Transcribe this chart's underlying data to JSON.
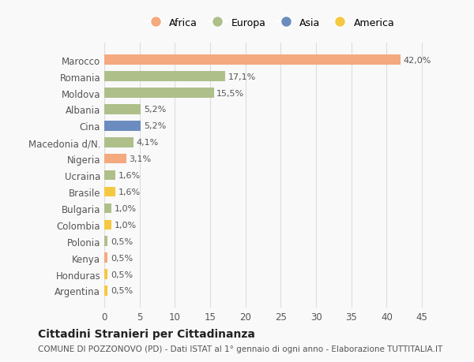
{
  "categories": [
    "Marocco",
    "Romania",
    "Moldova",
    "Albania",
    "Cina",
    "Macedonia d/N.",
    "Nigeria",
    "Ucraina",
    "Brasile",
    "Bulgaria",
    "Colombia",
    "Polonia",
    "Kenya",
    "Honduras",
    "Argentina"
  ],
  "values": [
    42.0,
    17.1,
    15.5,
    5.2,
    5.2,
    4.1,
    3.1,
    1.6,
    1.6,
    1.0,
    1.0,
    0.5,
    0.5,
    0.5,
    0.5
  ],
  "labels": [
    "42,0%",
    "17,1%",
    "15,5%",
    "5,2%",
    "5,2%",
    "4,1%",
    "3,1%",
    "1,6%",
    "1,6%",
    "1,0%",
    "1,0%",
    "0,5%",
    "0,5%",
    "0,5%",
    "0,5%"
  ],
  "continents": [
    "Africa",
    "Europa",
    "Europa",
    "Europa",
    "Asia",
    "Europa",
    "Africa",
    "Europa",
    "America",
    "Europa",
    "America",
    "Europa",
    "Africa",
    "America",
    "America"
  ],
  "continent_colors": {
    "Africa": "#F4A97F",
    "Europa": "#AFBF8A",
    "Asia": "#6B8CBE",
    "America": "#F5C842"
  },
  "legend_order": [
    "Africa",
    "Europa",
    "Asia",
    "America"
  ],
  "xlim": [
    0,
    47
  ],
  "xticks": [
    0,
    5,
    10,
    15,
    20,
    25,
    30,
    35,
    40,
    45
  ],
  "title": "Cittadini Stranieri per Cittadinanza",
  "subtitle": "COMUNE DI POZZONOVO (PD) - Dati ISTAT al 1° gennaio di ogni anno - Elaborazione TUTTITALIA.IT",
  "background_color": "#f9f9f9",
  "grid_color": "#dddddd",
  "bar_height": 0.6
}
